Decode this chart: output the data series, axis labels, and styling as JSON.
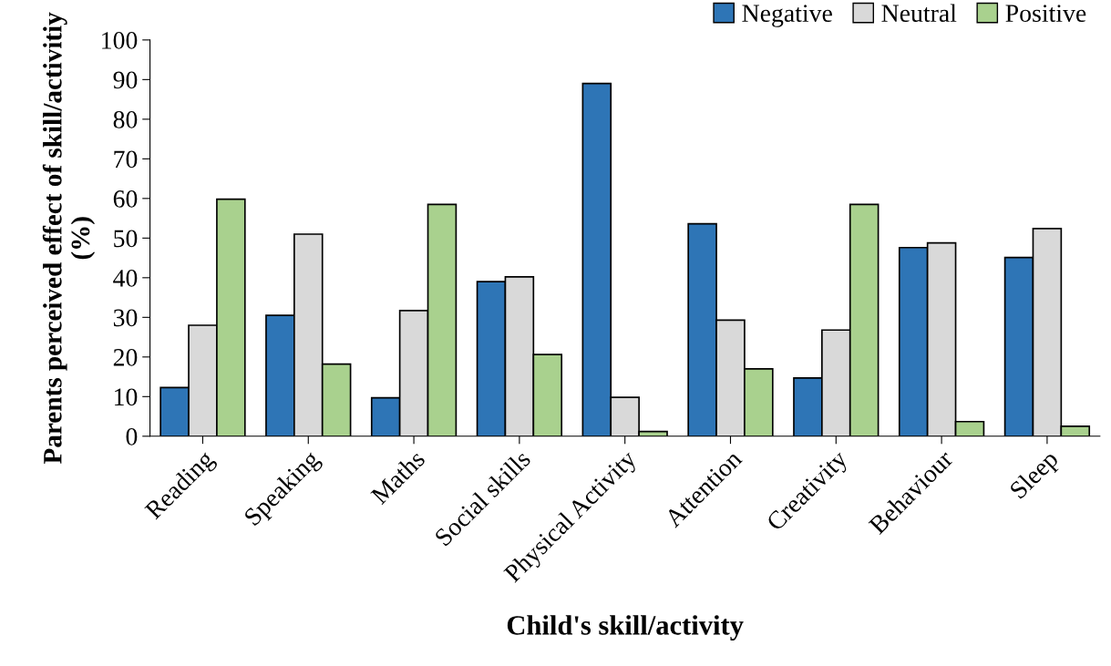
{
  "chart_data": {
    "type": "bar",
    "xlabel": "Child's skill/activity",
    "ylabel": "Parents perceived effect of skill/activitiy\n(%)",
    "categories": [
      "Reading",
      "Speaking",
      "Maths",
      "Social skills",
      "Physical Activity",
      "Attention",
      "Creativity",
      "Behaviour",
      "Sleep"
    ],
    "series": [
      {
        "name": "Negative",
        "color": "#2e75b6",
        "values": [
          12.3,
          30.5,
          9.7,
          39,
          89,
          53.6,
          14.7,
          47.6,
          45.1
        ]
      },
      {
        "name": "Neutral",
        "color": "#d9d9d9",
        "values": [
          28,
          51,
          31.7,
          40.2,
          9.8,
          29.3,
          26.8,
          48.8,
          52.4
        ]
      },
      {
        "name": "Positive",
        "color": "#a9d18e",
        "values": [
          59.8,
          18.2,
          58.5,
          20.6,
          1.2,
          17,
          58.5,
          3.7,
          2.5
        ]
      }
    ],
    "ylim": [
      0,
      100
    ],
    "yticks": [
      0,
      10,
      20,
      30,
      40,
      50,
      60,
      70,
      80,
      90,
      100
    ],
    "grid": false,
    "legend": "top right"
  }
}
